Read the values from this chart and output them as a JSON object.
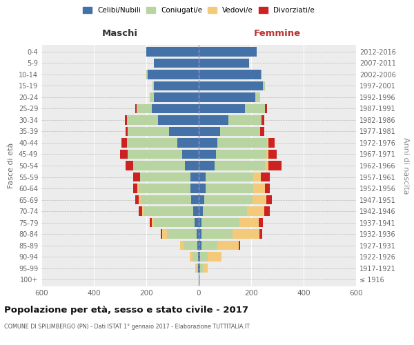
{
  "age_groups": [
    "100+",
    "95-99",
    "90-94",
    "85-89",
    "80-84",
    "75-79",
    "70-74",
    "65-69",
    "60-64",
    "55-59",
    "50-54",
    "45-49",
    "40-44",
    "35-39",
    "30-34",
    "25-29",
    "20-24",
    "15-19",
    "10-14",
    "5-9",
    "0-4"
  ],
  "birth_years": [
    "≤ 1916",
    "1917-1921",
    "1922-1926",
    "1927-1931",
    "1932-1936",
    "1937-1941",
    "1942-1946",
    "1947-1951",
    "1952-1956",
    "1957-1961",
    "1962-1966",
    "1967-1971",
    "1972-1976",
    "1977-1981",
    "1982-1986",
    "1987-1991",
    "1992-1996",
    "1997-2001",
    "2002-2006",
    "2007-2011",
    "2012-2016"
  ],
  "males_celibe": [
    0,
    2,
    3,
    5,
    8,
    15,
    22,
    28,
    32,
    32,
    52,
    62,
    82,
    112,
    155,
    178,
    172,
    172,
    195,
    172,
    200
  ],
  "males_coniugato": [
    0,
    5,
    20,
    52,
    112,
    155,
    185,
    192,
    198,
    192,
    198,
    208,
    192,
    158,
    118,
    58,
    14,
    5,
    5,
    0,
    0
  ],
  "males_vedovo": [
    0,
    5,
    10,
    15,
    20,
    10,
    10,
    10,
    5,
    0,
    0,
    0,
    0,
    0,
    0,
    0,
    0,
    0,
    0,
    0,
    0
  ],
  "males_divorziato": [
    0,
    0,
    0,
    0,
    5,
    8,
    12,
    12,
    15,
    25,
    30,
    30,
    20,
    10,
    8,
    5,
    0,
    0,
    0,
    0,
    0
  ],
  "females_nubile": [
    2,
    5,
    5,
    10,
    10,
    10,
    15,
    22,
    25,
    25,
    60,
    65,
    72,
    82,
    112,
    175,
    215,
    245,
    238,
    192,
    222
  ],
  "females_coniugata": [
    0,
    10,
    30,
    60,
    120,
    145,
    170,
    182,
    182,
    182,
    192,
    192,
    188,
    152,
    128,
    78,
    18,
    8,
    5,
    0,
    0
  ],
  "females_vedova": [
    2,
    20,
    52,
    82,
    102,
    75,
    65,
    55,
    45,
    30,
    15,
    10,
    5,
    0,
    0,
    0,
    0,
    0,
    0,
    0,
    0
  ],
  "females_divorziata": [
    0,
    0,
    0,
    5,
    10,
    15,
    20,
    20,
    20,
    35,
    50,
    30,
    25,
    15,
    10,
    8,
    0,
    0,
    0,
    0,
    0
  ],
  "col_celibe": "#4472a8",
  "col_coniugato": "#b8d4a0",
  "col_vedovo": "#f5c97a",
  "col_divorziato": "#cc2222",
  "xlim": 600,
  "xticks": [
    -600,
    -400,
    -200,
    0,
    200,
    400,
    600
  ],
  "title": "Popolazione per età, sesso e stato civile - 2017",
  "subtitle": "COMUNE DI SPILIMBERGO (PN) - Dati ISTAT 1° gennaio 2017 - Elaborazione TUTTITALIA.IT",
  "ylabel_left": "Fasce di età",
  "ylabel_right": "Anni di nascita",
  "label_maschi": "Maschi",
  "label_femmine": "Femmine",
  "legend_labels": [
    "Celibi/Nubili",
    "Coniugati/e",
    "Vedovi/e",
    "Divorziati/e"
  ],
  "bg_color": "#ececec"
}
